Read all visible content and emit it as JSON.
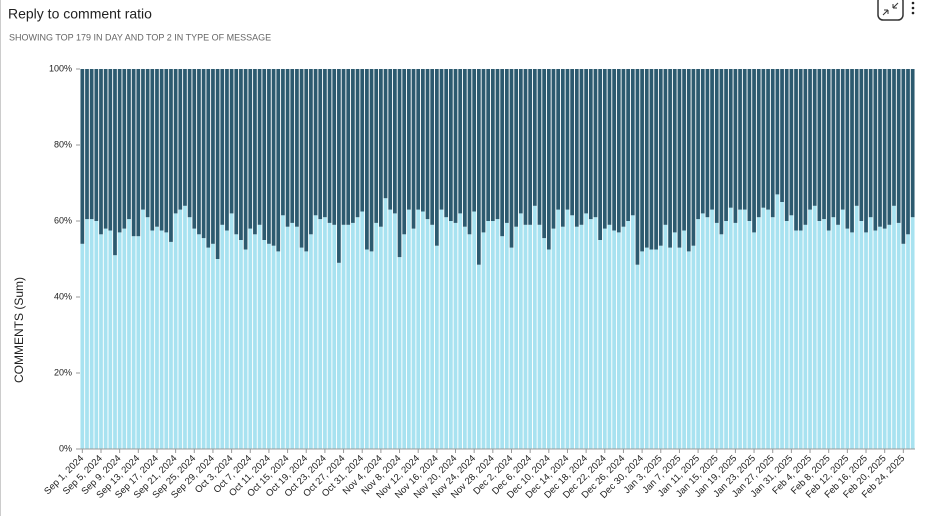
{
  "chart_data": {
    "type": "bar",
    "stacked": true,
    "title": "Reply to comment ratio",
    "subtitle": "SHOWING TOP 179 IN DAY AND TOP 2 IN TYPE OF MESSAGE",
    "ylabel": "COMMENTS (Sum)",
    "ylim": [
      0,
      100
    ],
    "yticks": [
      {
        "value": 0,
        "label": "0%"
      },
      {
        "value": 20,
        "label": "20%"
      },
      {
        "value": 40,
        "label": "40%"
      },
      {
        "value": 60,
        "label": "60%"
      },
      {
        "value": 80,
        "label": "80%"
      },
      {
        "value": 100,
        "label": "100%"
      }
    ],
    "categories": [
      "Sep 1, 2024",
      null,
      null,
      null,
      "Sep 5, 2024",
      null,
      null,
      null,
      "Sep 9, 2024",
      null,
      null,
      null,
      "Sep 13, 2024",
      null,
      null,
      null,
      "Sep 17, 2024",
      null,
      null,
      null,
      "Sep 21, 2024",
      null,
      null,
      null,
      "Sep 25, 2024",
      null,
      null,
      null,
      "Sep 29, 2024",
      null,
      null,
      null,
      "Oct 3, 2024",
      null,
      null,
      null,
      "Oct 7, 2024",
      null,
      null,
      null,
      "Oct 11, 2024",
      null,
      null,
      null,
      "Oct 15, 2024",
      null,
      null,
      null,
      "Oct 19, 2024",
      null,
      null,
      null,
      "Oct 23, 2024",
      null,
      null,
      null,
      "Oct 27, 2024",
      null,
      null,
      null,
      "Oct 31, 2024",
      null,
      null,
      null,
      "Nov 4, 2024",
      null,
      null,
      null,
      "Nov 8, 2024",
      null,
      null,
      null,
      "Nov 12, 2024",
      null,
      null,
      null,
      "Nov 16, 2024",
      null,
      null,
      null,
      "Nov 20, 2024",
      null,
      null,
      null,
      "Nov 24, 2024",
      null,
      null,
      null,
      "Nov 28, 2024",
      null,
      null,
      null,
      "Dec 2, 2024",
      null,
      null,
      null,
      "Dec 6, 2024",
      null,
      null,
      null,
      "Dec 10, 2024",
      null,
      null,
      null,
      "Dec 14, 2024",
      null,
      null,
      null,
      "Dec 18, 2024",
      null,
      null,
      null,
      "Dec 22, 2024",
      null,
      null,
      null,
      "Dec 26, 2024",
      null,
      null,
      null,
      "Dec 30, 2024",
      null,
      null,
      null,
      "Jan 3, 2025",
      null,
      null,
      null,
      "Jan 7, 2025",
      null,
      null,
      null,
      "Jan 11, 2025",
      null,
      null,
      null,
      "Jan 15, 2025",
      null,
      null,
      null,
      "Jan 19, 2025",
      null,
      null,
      null,
      "Jan 23, 2025",
      null,
      null,
      null,
      "Jan 27, 2025",
      null,
      null,
      null,
      "Jan 31, 2025",
      null,
      null,
      null,
      "Feb 4, 2025",
      null,
      null,
      null,
      "Feb 8, 2025",
      null,
      null,
      null,
      "Feb 12, 2025",
      null,
      null,
      null,
      "Feb 16, 2025",
      null,
      null,
      null,
      "Feb 20, 2025",
      null,
      null,
      null,
      "Feb 24, 2025",
      null,
      null
    ],
    "series": [
      {
        "color": "#a8e2f0",
        "values": [
          54,
          60.5,
          60.5,
          60,
          56.5,
          58,
          57.5,
          51,
          57,
          58,
          60.5,
          56,
          56,
          63,
          61,
          57.5,
          58.5,
          57.5,
          57,
          54.5,
          62,
          63,
          64,
          61,
          58,
          56.5,
          55.5,
          53,
          54,
          50,
          59,
          57.5,
          62,
          56.5,
          55,
          52.5,
          58,
          56.5,
          59,
          55,
          54,
          53.5,
          52,
          61.5,
          58.5,
          59.5,
          58.5,
          53,
          52,
          56.5,
          61.5,
          60.5,
          61,
          59.5,
          59,
          49,
          59,
          59,
          59.5,
          61,
          62.5,
          52.5,
          52,
          59.5,
          58.5,
          66,
          63,
          62,
          50.5,
          56.5,
          63,
          58,
          63,
          62.5,
          60.5,
          59,
          53.5,
          63,
          61,
          60,
          59.5,
          62,
          58.5,
          56.5,
          62.5,
          48.5,
          57,
          60,
          60,
          60.5,
          56,
          59.5,
          53,
          58.5,
          62,
          59,
          59,
          64,
          59,
          55.5,
          52.5,
          58,
          63,
          58.5,
          63,
          61.5,
          58.5,
          59,
          62,
          60.5,
          61,
          55,
          58,
          59,
          57.5,
          57,
          58.5,
          60,
          61.5,
          48.5,
          52,
          53,
          52.5,
          52.5,
          53.5,
          59,
          53,
          57,
          53,
          57.5,
          52,
          53.5,
          60.5,
          62,
          61,
          63,
          59.5,
          56.5,
          60,
          63.5,
          59.5,
          63,
          63,
          60,
          57,
          61,
          63.5,
          63,
          61,
          67,
          65,
          60,
          61.5,
          57.5,
          57.5,
          59,
          63,
          64,
          60,
          60.5,
          57.5,
          61,
          59,
          63,
          58,
          57,
          64,
          60,
          57,
          61,
          57.5,
          58.5,
          58,
          59,
          64,
          59.5,
          54,
          56.5,
          61
        ]
      },
      {
        "color": "#2c5a6f",
        "values": [
          46,
          39.5,
          39.5,
          40,
          43.5,
          42,
          42.5,
          49,
          43,
          42,
          39.5,
          44,
          44,
          37,
          39,
          42.5,
          41.5,
          42.5,
          43,
          45.5,
          38,
          37,
          36,
          39,
          42,
          43.5,
          44.5,
          47,
          46,
          50,
          41,
          42.5,
          38,
          43.5,
          45,
          47.5,
          42,
          43.5,
          41,
          45,
          46,
          46.5,
          48,
          38.5,
          41.5,
          40.5,
          41.5,
          47,
          48,
          43.5,
          38.5,
          39.5,
          39,
          40.5,
          41,
          51,
          41,
          41,
          40.5,
          39,
          37.5,
          47.5,
          48,
          40.5,
          41.5,
          34,
          37,
          38,
          49.5,
          43.5,
          37,
          42,
          37,
          37.5,
          39.5,
          41,
          46.5,
          37,
          39,
          40,
          40.5,
          38,
          41.5,
          43.5,
          37.5,
          51.5,
          43,
          40,
          40,
          39.5,
          44,
          40.5,
          47,
          41.5,
          38,
          41,
          41,
          36,
          41,
          44.5,
          47.5,
          42,
          37,
          41.5,
          37,
          38.5,
          41.5,
          41,
          38,
          39.5,
          39,
          45,
          42,
          41,
          42.5,
          43,
          41.5,
          40,
          38.5,
          51.5,
          48,
          47,
          47.5,
          47.5,
          46.5,
          41,
          47,
          43,
          47,
          42.5,
          48,
          46.5,
          39.5,
          38,
          39,
          37,
          40.5,
          43.5,
          40,
          36.5,
          40.5,
          37,
          37,
          40,
          43,
          39,
          36.5,
          37,
          39,
          33,
          35,
          40,
          38.5,
          42.5,
          42.5,
          41,
          37,
          36,
          40,
          39.5,
          42.5,
          39,
          41,
          37,
          42,
          43,
          36,
          40,
          43,
          39,
          42.5,
          41.5,
          42,
          41,
          36,
          40.5,
          46,
          43.5,
          39
        ]
      }
    ]
  }
}
